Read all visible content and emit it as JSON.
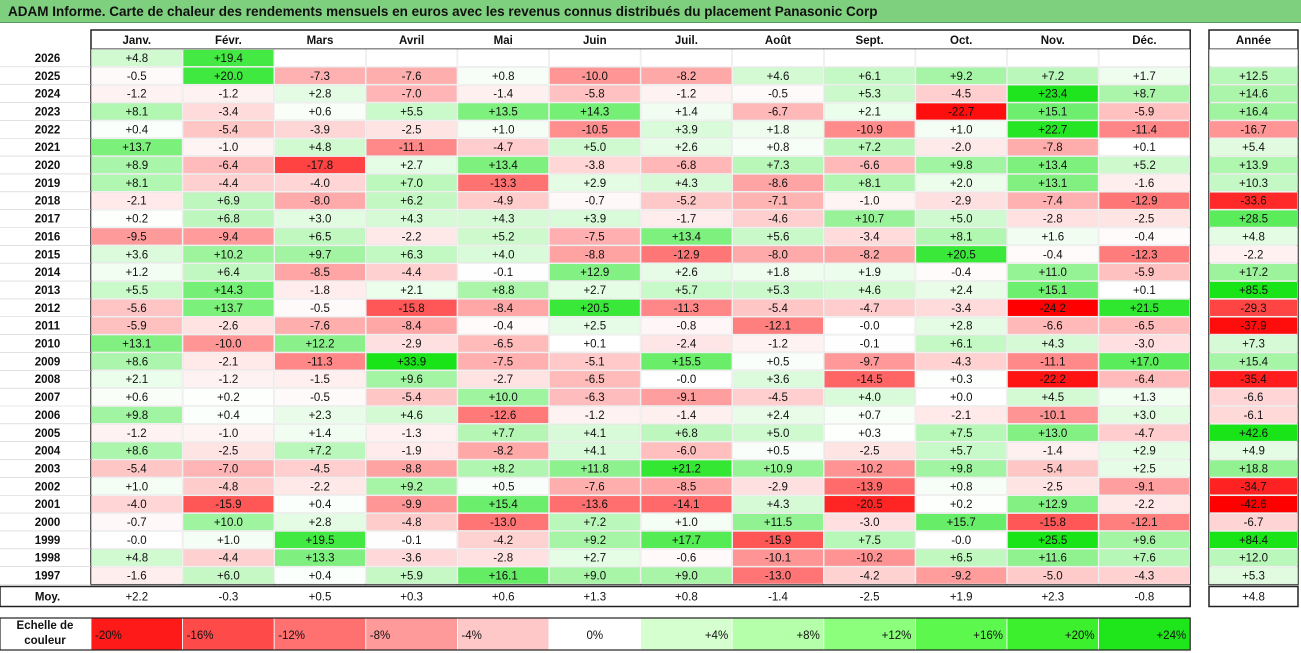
{
  "title": "ADAM Informe. Carte de chaleur des rendements mensuels en euros avec les revenus connus distribués du placement Panasonic Corp",
  "chart_data": {
    "type": "heatmap",
    "columns": [
      "Janv.",
      "Févr.",
      "Mars",
      "Avril",
      "Mai",
      "Juin",
      "Juil.",
      "Août",
      "Sept.",
      "Oct.",
      "Nov.",
      "Déc."
    ],
    "year_column_label": "Année",
    "rows": [
      {
        "year": "2026",
        "values": [
          4.8,
          19.4,
          null,
          null,
          null,
          null,
          null,
          null,
          null,
          null,
          null,
          null
        ],
        "annual": null
      },
      {
        "year": "2025",
        "values": [
          -0.5,
          20.0,
          -7.3,
          -7.6,
          0.8,
          -10.0,
          -8.2,
          4.6,
          6.1,
          9.2,
          7.2,
          1.7
        ],
        "annual": 12.5
      },
      {
        "year": "2024",
        "values": [
          -1.2,
          -1.2,
          2.8,
          -7.0,
          -1.4,
          -5.8,
          -1.2,
          -0.5,
          5.3,
          -4.5,
          23.4,
          8.7
        ],
        "annual": 14.6
      },
      {
        "year": "2023",
        "values": [
          8.1,
          -3.4,
          0.6,
          5.5,
          13.5,
          14.3,
          1.4,
          -6.7,
          2.1,
          -22.7,
          15.1,
          -5.9
        ],
        "annual": 16.4
      },
      {
        "year": "2022",
        "values": [
          0.4,
          -5.4,
          -3.9,
          -2.5,
          1.0,
          -10.5,
          3.9,
          1.8,
          -10.9,
          1.0,
          22.7,
          -11.4
        ],
        "annual": -16.7
      },
      {
        "year": "2021",
        "values": [
          13.7,
          -1.0,
          4.8,
          -11.1,
          -4.7,
          5.0,
          2.6,
          0.8,
          7.2,
          -2.0,
          -7.8,
          0.1
        ],
        "annual": 5.4
      },
      {
        "year": "2020",
        "values": [
          8.9,
          -6.4,
          -17.8,
          2.7,
          13.4,
          -3.8,
          -6.8,
          7.3,
          -6.6,
          9.8,
          13.4,
          5.2
        ],
        "annual": 13.9
      },
      {
        "year": "2019",
        "values": [
          8.1,
          -4.4,
          -4.0,
          7.0,
          -13.3,
          2.9,
          4.3,
          -8.6,
          8.1,
          2.0,
          13.1,
          -1.6
        ],
        "annual": 10.3
      },
      {
        "year": "2018",
        "values": [
          -2.1,
          6.9,
          -8.0,
          6.2,
          -4.9,
          -0.7,
          -5.2,
          -7.1,
          -1.0,
          -2.9,
          -7.4,
          -12.9
        ],
        "annual": -33.6
      },
      {
        "year": "2017",
        "values": [
          0.2,
          6.8,
          3.0,
          4.3,
          4.3,
          3.9,
          -1.7,
          -4.6,
          10.7,
          5.0,
          -2.8,
          -2.5
        ],
        "annual": 28.5
      },
      {
        "year": "2016",
        "values": [
          -9.5,
          -9.4,
          6.5,
          -2.2,
          5.2,
          -7.5,
          13.4,
          5.6,
          -3.4,
          8.1,
          1.6,
          -0.4
        ],
        "annual": 4.8
      },
      {
        "year": "2015",
        "values": [
          3.6,
          10.2,
          9.7,
          6.3,
          4.0,
          -8.8,
          -12.9,
          -8.0,
          -8.2,
          20.5,
          -0.4,
          -12.3
        ],
        "annual": -2.2
      },
      {
        "year": "2014",
        "values": [
          1.2,
          6.4,
          -8.5,
          -4.4,
          -0.1,
          12.9,
          2.6,
          1.8,
          1.9,
          -0.4,
          11.0,
          -5.9
        ],
        "annual": 17.2
      },
      {
        "year": "2013",
        "values": [
          5.5,
          14.3,
          -1.8,
          2.1,
          8.8,
          2.7,
          5.7,
          5.3,
          4.6,
          2.4,
          15.1,
          0.1
        ],
        "annual": 85.5
      },
      {
        "year": "2012",
        "values": [
          -5.6,
          13.7,
          -0.5,
          -15.8,
          -8.4,
          20.5,
          -11.3,
          -5.4,
          -4.7,
          -3.4,
          -24.2,
          21.5
        ],
        "annual": -29.3
      },
      {
        "year": "2011",
        "values": [
          -5.9,
          -2.6,
          -7.6,
          -8.4,
          -0.4,
          2.5,
          -0.8,
          -12.1,
          -0.0,
          2.8,
          -6.6,
          -6.5
        ],
        "annual": -37.9
      },
      {
        "year": "2010",
        "values": [
          13.1,
          -10.0,
          12.2,
          -2.9,
          -6.5,
          0.1,
          -2.4,
          -1.2,
          -0.1,
          6.1,
          4.3,
          -3.0
        ],
        "annual": 7.3
      },
      {
        "year": "2009",
        "values": [
          8.6,
          -2.1,
          -11.3,
          33.9,
          -7.5,
          -5.1,
          15.5,
          0.5,
          -9.7,
          -4.3,
          -11.1,
          17.0
        ],
        "annual": 15.4
      },
      {
        "year": "2008",
        "values": [
          2.1,
          -1.2,
          -1.5,
          9.6,
          -2.7,
          -6.5,
          -0.0,
          3.6,
          -14.5,
          0.3,
          -22.2,
          -6.4
        ],
        "annual": -35.4
      },
      {
        "year": "2007",
        "values": [
          0.6,
          0.2,
          -0.5,
          -5.4,
          10.0,
          -6.3,
          -9.1,
          -4.5,
          4.0,
          0.0,
          4.5,
          1.3
        ],
        "annual": -6.6
      },
      {
        "year": "2006",
        "values": [
          9.8,
          0.4,
          2.3,
          4.6,
          -12.6,
          -1.2,
          -1.4,
          2.4,
          0.7,
          -2.1,
          -10.1,
          3.0
        ],
        "annual": -6.1
      },
      {
        "year": "2005",
        "values": [
          -1.2,
          -1.0,
          1.4,
          -1.3,
          7.7,
          4.1,
          6.8,
          5.0,
          0.3,
          7.5,
          13.0,
          -4.7
        ],
        "annual": 42.6
      },
      {
        "year": "2004",
        "values": [
          8.6,
          -2.5,
          7.2,
          -1.9,
          -8.2,
          4.1,
          -6.0,
          0.5,
          -2.5,
          5.7,
          -1.4,
          2.9
        ],
        "annual": 4.9
      },
      {
        "year": "2003",
        "values": [
          -5.4,
          -7.0,
          -4.5,
          -8.8,
          8.2,
          11.8,
          21.2,
          10.9,
          -10.2,
          9.8,
          -5.4,
          2.5
        ],
        "annual": 18.8
      },
      {
        "year": "2002",
        "values": [
          1.0,
          -4.8,
          -2.2,
          9.2,
          0.5,
          -7.6,
          -8.5,
          -2.9,
          -13.9,
          0.8,
          -2.5,
          -9.1
        ],
        "annual": -34.7
      },
      {
        "year": "2001",
        "values": [
          -4.0,
          -15.9,
          0.4,
          -9.9,
          15.4,
          -13.6,
          -14.1,
          4.3,
          -20.5,
          0.2,
          12.9,
          -2.2
        ],
        "annual": -42.6
      },
      {
        "year": "2000",
        "values": [
          -0.7,
          10.0,
          2.8,
          -4.8,
          -13.0,
          7.2,
          1.0,
          11.5,
          -3.0,
          15.7,
          -15.8,
          -12.1
        ],
        "annual": -6.7
      },
      {
        "year": "1999",
        "values": [
          -0.0,
          1.0,
          19.5,
          -0.1,
          -4.2,
          9.2,
          17.7,
          -15.9,
          7.5,
          -0.0,
          25.5,
          9.6
        ],
        "annual": 84.4
      },
      {
        "year": "1998",
        "values": [
          4.8,
          -4.4,
          13.3,
          -3.6,
          -2.8,
          2.7,
          -0.6,
          -10.1,
          -10.2,
          6.5,
          11.6,
          7.6
        ],
        "annual": 12.0
      },
      {
        "year": "1997",
        "values": [
          -1.6,
          6.0,
          0.4,
          5.9,
          16.1,
          9.0,
          9.0,
          -13.0,
          -4.2,
          -9.2,
          -5.0,
          -4.3
        ],
        "annual": 5.3
      }
    ],
    "average_row": {
      "label": "Moy.",
      "values": [
        2.2,
        -0.3,
        0.5,
        0.3,
        0.6,
        1.3,
        0.8,
        -1.4,
        -2.5,
        1.9,
        2.3,
        -0.8
      ],
      "annual": 4.8
    },
    "color_scale": {
      "label": "Echelle de couleur",
      "stops": [
        {
          "label": "-20%",
          "color": "#ff1a1a"
        },
        {
          "label": "-16%",
          "color": "#ff4a4a"
        },
        {
          "label": "-12%",
          "color": "#ff7070"
        },
        {
          "label": "-8%",
          "color": "#ff9a9a"
        },
        {
          "label": "-4%",
          "color": "#ffc8c8"
        },
        {
          "label": "0%",
          "color": "#ffffff"
        },
        {
          "label": "+4%",
          "color": "#d6ffd0"
        },
        {
          "label": "+8%",
          "color": "#b6ffaa"
        },
        {
          "label": "+12%",
          "color": "#8cff7c"
        },
        {
          "label": "+16%",
          "color": "#5cf84e"
        },
        {
          "label": "+20%",
          "color": "#3cf02e"
        },
        {
          "label": "+24%",
          "color": "#1ee61a"
        }
      ]
    },
    "colors": {
      "negative_max": "#ff0000",
      "positive_max": "#18e418",
      "neutral": "#ffffff",
      "title_bar": "#7ed07e"
    }
  }
}
